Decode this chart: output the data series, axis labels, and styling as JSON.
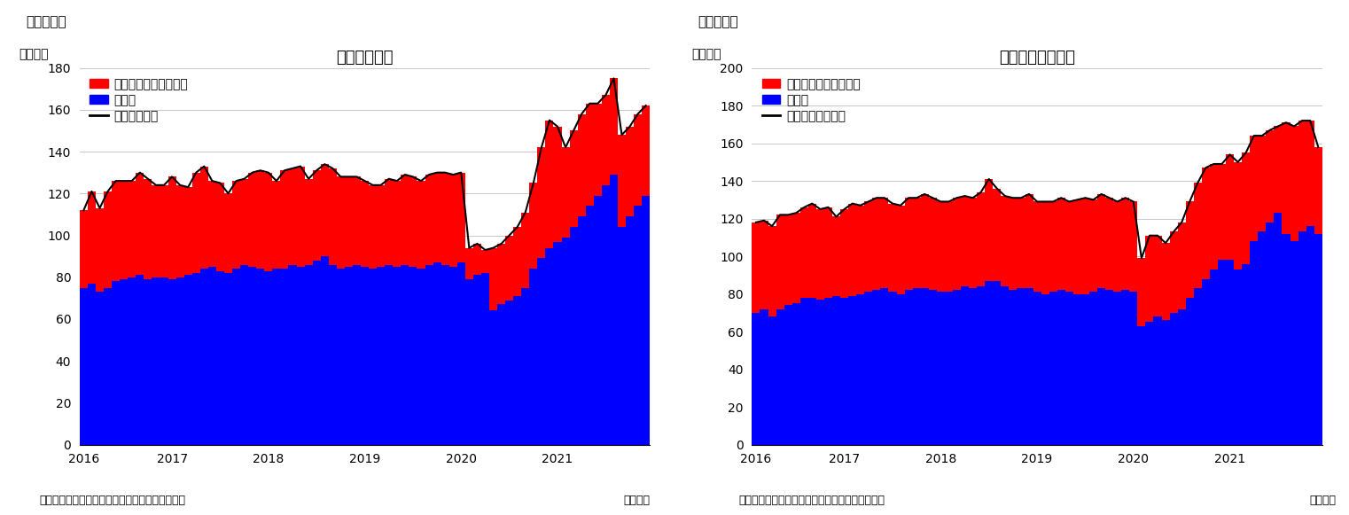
{
  "chart1": {
    "title": "住宅着工件数",
    "super_title": "（図表１）",
    "ylabel": "（万件）",
    "xlabel": "（月次）",
    "source": "（資料）センサス局よりニッセイ基礎研究所作成",
    "legend": [
      "集合住宅（二戸以上）",
      "戸建て",
      "住宅着工件数"
    ],
    "ylim": [
      0,
      180
    ],
    "yticks": [
      0,
      20,
      40,
      60,
      80,
      100,
      120,
      140,
      160,
      180
    ],
    "blue_values": [
      75,
      77,
      73,
      75,
      78,
      79,
      80,
      81,
      79,
      80,
      80,
      79,
      80,
      81,
      82,
      84,
      85,
      83,
      82,
      84,
      86,
      85,
      84,
      83,
      84,
      84,
      86,
      85,
      86,
      88,
      90,
      86,
      84,
      85,
      86,
      85,
      84,
      85,
      86,
      85,
      86,
      85,
      84,
      86,
      87,
      86,
      85,
      87,
      79,
      81,
      82,
      64,
      67,
      69,
      71,
      75,
      84,
      89,
      94,
      97,
      99,
      104,
      109,
      114,
      119,
      124,
      129,
      104,
      109,
      114,
      119
    ],
    "red_values": [
      37,
      44,
      40,
      46,
      48,
      47,
      46,
      49,
      48,
      44,
      44,
      49,
      44,
      42,
      48,
      49,
      41,
      42,
      38,
      42,
      41,
      45,
      47,
      47,
      42,
      47,
      46,
      48,
      41,
      43,
      44,
      46,
      44,
      43,
      42,
      41,
      40,
      39,
      41,
      41,
      43,
      43,
      42,
      43,
      43,
      44,
      44,
      43,
      15,
      15,
      11,
      30,
      29,
      31,
      33,
      36,
      41,
      53,
      61,
      55,
      43,
      46,
      49,
      49,
      44,
      43,
      46,
      44,
      43,
      44,
      43
    ],
    "xtick_positions": [
      0,
      11,
      23,
      35,
      47,
      59
    ],
    "xtick_labels": [
      "2016",
      "2017",
      "2018",
      "2019",
      "2020",
      "2021"
    ]
  },
  "chart2": {
    "title": "住宅着工許可件数",
    "super_title": "（図表２）",
    "ylabel": "（万件）",
    "xlabel": "（月次）",
    "source": "（資料）センサス局よりニッセイ基礎研究所作成",
    "legend": [
      "集合住宅（二戸以上）",
      "戸建て",
      "住宅建築許可件数"
    ],
    "ylim": [
      0,
      200
    ],
    "yticks": [
      0,
      20,
      40,
      60,
      80,
      100,
      120,
      140,
      160,
      180,
      200
    ],
    "blue_values": [
      70,
      72,
      68,
      72,
      74,
      75,
      78,
      78,
      77,
      78,
      79,
      78,
      79,
      80,
      81,
      82,
      83,
      81,
      80,
      82,
      83,
      83,
      82,
      81,
      81,
      82,
      84,
      83,
      84,
      87,
      87,
      84,
      82,
      83,
      83,
      81,
      80,
      81,
      82,
      81,
      80,
      80,
      81,
      83,
      82,
      81,
      82,
      81,
      63,
      65,
      68,
      66,
      70,
      72,
      78,
      83,
      88,
      93,
      98,
      98,
      93,
      96,
      108,
      113,
      118,
      123,
      112,
      108,
      113,
      116,
      112
    ],
    "red_values": [
      48,
      47,
      48,
      50,
      48,
      48,
      48,
      50,
      48,
      48,
      42,
      47,
      49,
      47,
      48,
      49,
      48,
      47,
      47,
      49,
      48,
      50,
      49,
      48,
      48,
      49,
      48,
      48,
      50,
      54,
      49,
      48,
      49,
      48,
      50,
      48,
      49,
      48,
      49,
      48,
      50,
      51,
      49,
      50,
      49,
      48,
      49,
      48,
      36,
      46,
      43,
      41,
      43,
      46,
      51,
      56,
      59,
      56,
      51,
      56,
      57,
      59,
      56,
      51,
      49,
      46,
      59,
      61,
      59,
      56,
      46
    ],
    "xtick_positions": [
      0,
      11,
      23,
      35,
      47,
      59
    ],
    "xtick_labels": [
      "2016",
      "2017",
      "2018",
      "2019",
      "2020",
      "2021"
    ]
  },
  "bar_color_blue": "#0000FF",
  "bar_color_red": "#FF0000",
  "line_color": "#000000",
  "background_color": "#FFFFFF",
  "title_fontsize": 13,
  "label_fontsize": 10,
  "tick_fontsize": 10,
  "legend_fontsize": 10,
  "super_title_fontsize": 11,
  "source_fontsize": 9
}
